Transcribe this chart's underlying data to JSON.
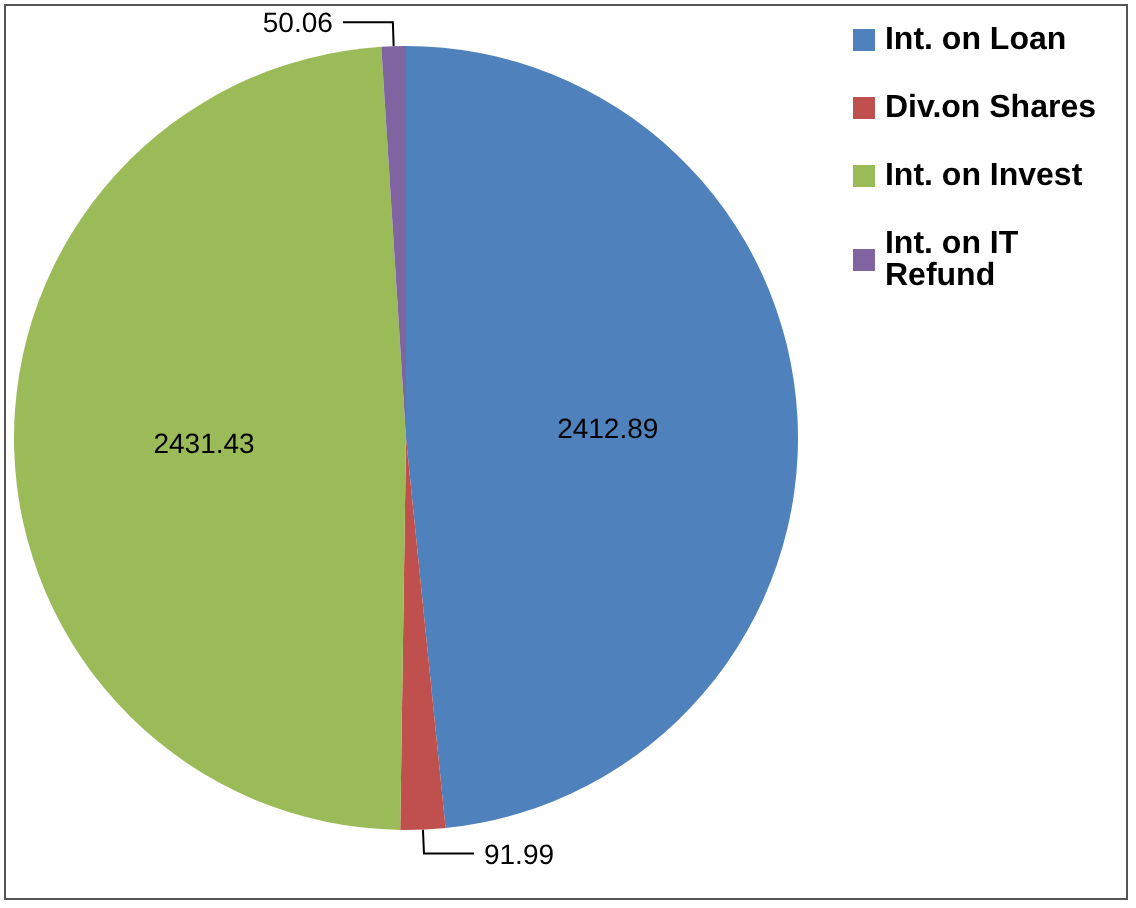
{
  "chart_data": {
    "type": "pie",
    "categories": [
      "Int. on Loan",
      "Div.on Shares",
      "Int. on Invest",
      "Int. on IT Refund"
    ],
    "values": [
      2412.89,
      91.99,
      2431.43,
      50.06
    ],
    "colors": [
      "#4f81bd",
      "#c0504d",
      "#9bbb59",
      "#8064a2"
    ],
    "data_labels": true,
    "legend": "top right"
  }
}
